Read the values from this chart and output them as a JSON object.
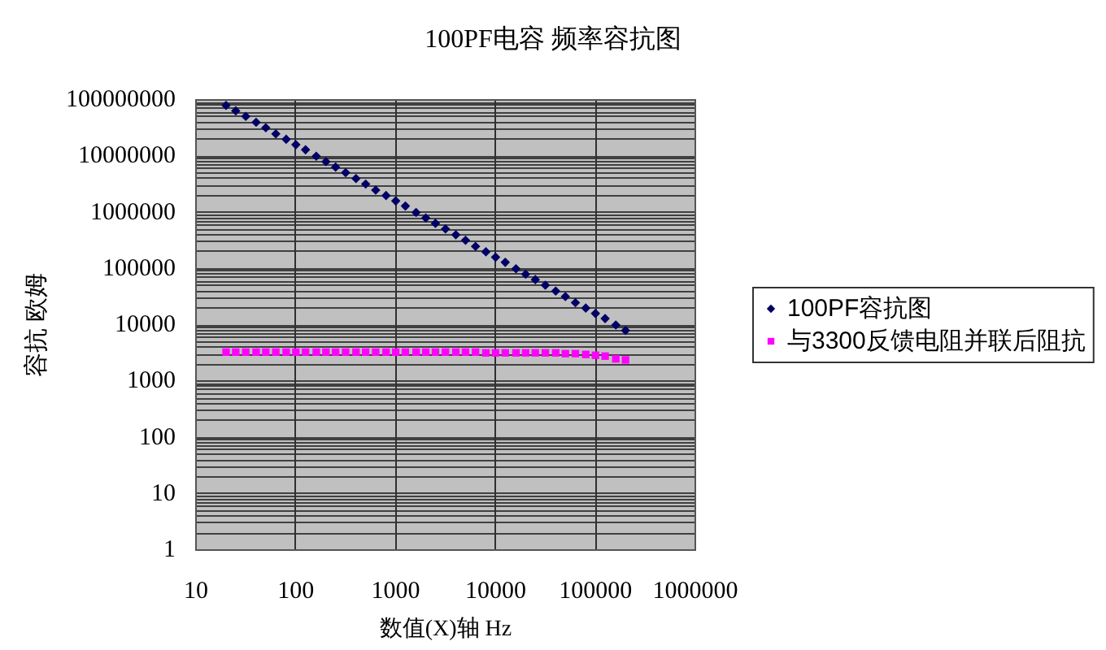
{
  "chart_data": {
    "type": "scatter",
    "title": "100PF电容 频率容抗图",
    "xlabel": "数值(X)轴 Hz",
    "ylabel": "容抗 欧姆",
    "x": [
      20,
      25,
      31.5,
      40,
      50,
      63,
      80,
      100,
      125,
      160,
      200,
      250,
      315,
      400,
      500,
      630,
      800,
      1000,
      1250,
      1600,
      2000,
      2500,
      3150,
      4000,
      5000,
      6300,
      8000,
      10000,
      12500,
      16000,
      20000,
      25000,
      31500,
      40000,
      50000,
      63000,
      80000,
      100000,
      125000,
      160000,
      200000
    ],
    "series": [
      {
        "name": "100PF容抗图",
        "color": "#000066",
        "marker": "diamond",
        "values": [
          80000000,
          64000000,
          51000000,
          40000000,
          32000000,
          25000000,
          20000000,
          16000000,
          13000000,
          10000000,
          8000000,
          6400000,
          5100000,
          4000000,
          3200000,
          2500000,
          2000000,
          1600000,
          1300000,
          1000000,
          800000,
          640000,
          510000,
          400000,
          320000,
          250000,
          200000,
          160000,
          130000,
          100000,
          80000,
          64000,
          51000,
          40000,
          32000,
          25000,
          20000,
          16000,
          13000,
          10000,
          8000
        ]
      },
      {
        "name": "与3300反馈电阻并联后阻抗",
        "color": "#ff00ff",
        "marker": "square",
        "values": [
          3300,
          3300,
          3300,
          3300,
          3300,
          3300,
          3300,
          3300,
          3300,
          3300,
          3300,
          3300,
          3300,
          3300,
          3300,
          3300,
          3300,
          3300,
          3300,
          3300,
          3300,
          3300,
          3300,
          3300,
          3300,
          3300,
          3200,
          3200,
          3200,
          3200,
          3200,
          3200,
          3200,
          3200,
          3100,
          3100,
          3000,
          2900,
          2800,
          2500,
          2400
        ]
      }
    ],
    "log": "xy",
    "xlim": [
      10,
      1000000
    ],
    "xticks": [
      10,
      100,
      1000,
      10000,
      100000,
      1000000
    ],
    "ylim": [
      1,
      100000000
    ],
    "yticks": [
      1,
      {
        "value": 2,
        "label": null
      },
      {
        "value": 3,
        "label": null
      },
      {
        "value": 4,
        "label": null
      },
      {
        "value": 5,
        "label": null
      },
      {
        "value": 6,
        "label": null
      },
      {
        "value": 7,
        "label": null
      },
      {
        "value": 8,
        "label": null
      },
      {
        "value": 9,
        "label": null
      },
      10,
      {
        "value": 20,
        "label": null
      },
      {
        "value": 30,
        "label": null
      },
      {
        "value": 40,
        "label": null
      },
      {
        "value": 50,
        "label": null
      },
      {
        "value": 60,
        "label": null
      },
      {
        "value": 70,
        "label": null
      },
      {
        "value": 80,
        "label": null
      },
      {
        "value": 90,
        "label": null
      },
      100,
      {
        "value": 200,
        "label": null
      },
      {
        "value": 300,
        "label": null
      },
      {
        "value": 400,
        "label": null
      },
      {
        "value": 500,
        "label": null
      },
      {
        "value": 600,
        "label": null
      },
      {
        "value": 700,
        "label": null
      },
      {
        "value": 800,
        "label": null
      },
      {
        "value": 900,
        "label": null
      },
      1000,
      {
        "value": 2000,
        "label": null
      },
      {
        "value": 3000,
        "label": null
      },
      {
        "value": 4000,
        "label": null
      },
      {
        "value": 5000,
        "label": null
      },
      {
        "value": 6000,
        "label": null
      },
      {
        "value": 7000,
        "label": null
      },
      {
        "value": 8000,
        "label": null
      },
      {
        "value": 9000,
        "label": null
      },
      10000,
      {
        "value": 20000,
        "label": null
      },
      {
        "value": 30000,
        "label": null
      },
      {
        "value": 40000,
        "label": null
      },
      {
        "value": 50000,
        "label": null
      },
      {
        "value": 60000,
        "label": null
      },
      {
        "value": 70000,
        "label": null
      },
      {
        "value": 80000,
        "label": null
      },
      {
        "value": 90000,
        "label": null
      },
      100000,
      {
        "value": 200000,
        "label": null
      },
      {
        "value": 300000,
        "label": null
      },
      {
        "value": 400000,
        "label": null
      },
      {
        "value": 500000,
        "label": null
      },
      {
        "value": 600000,
        "label": null
      },
      {
        "value": 700000,
        "label": null
      },
      {
        "value": 800000,
        "label": null
      },
      {
        "value": 900000,
        "label": null
      },
      1000000,
      {
        "value": 2000000,
        "label": null
      },
      {
        "value": 3000000,
        "label": null
      },
      {
        "value": 4000000,
        "label": null
      },
      {
        "value": 5000000,
        "label": null
      },
      {
        "value": 6000000,
        "label": null
      },
      {
        "value": 7000000,
        "label": null
      },
      {
        "value": 8000000,
        "label": null
      },
      {
        "value": 9000000,
        "label": null
      },
      10000000,
      {
        "value": 20000000,
        "label": null
      },
      {
        "value": 30000000,
        "label": null
      },
      {
        "value": 40000000,
        "label": null
      },
      {
        "value": 50000000,
        "label": null
      },
      {
        "value": 60000000,
        "label": null
      },
      {
        "value": 70000000,
        "label": null
      },
      {
        "value": 80000000,
        "label": null
      },
      {
        "value": 90000000,
        "label": null
      },
      100000000
    ],
    "grid": true,
    "legend": "right"
  }
}
